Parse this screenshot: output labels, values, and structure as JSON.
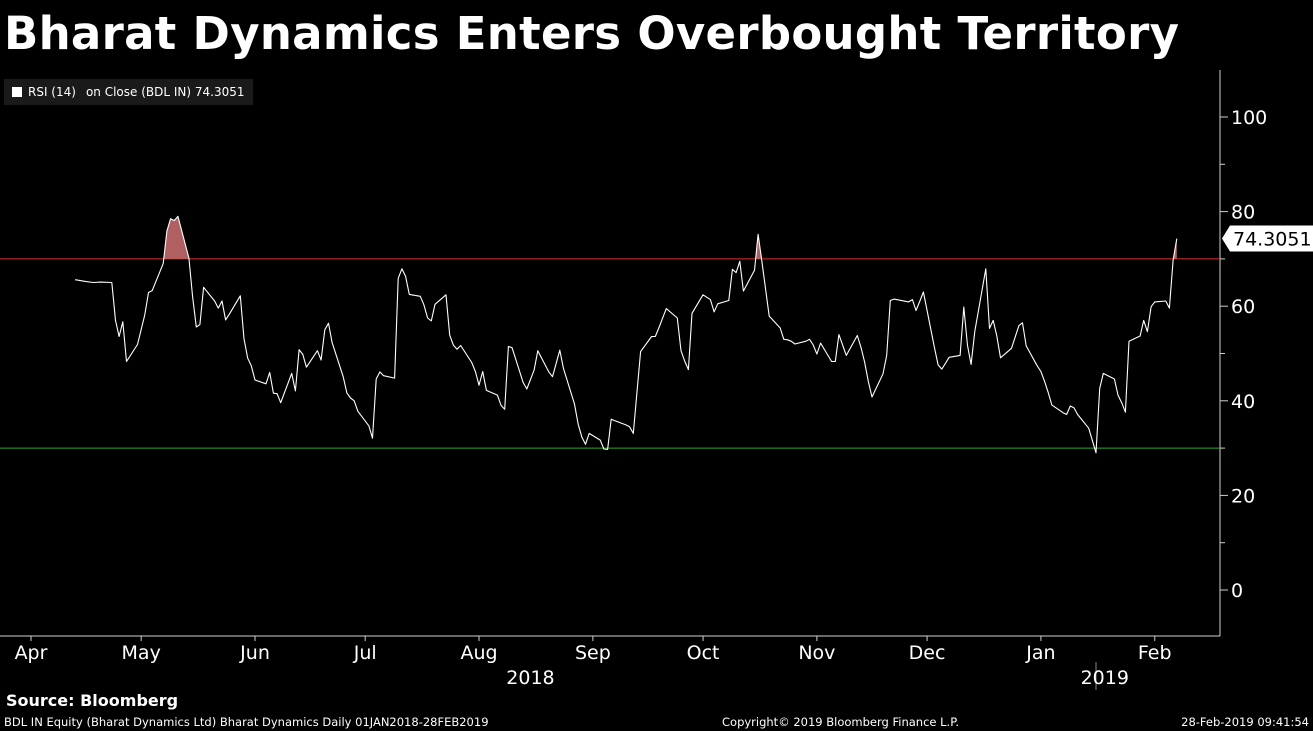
{
  "header": {
    "title": "Bharat Dynamics Enters Overbought Territory"
  },
  "legend": {
    "series_label": "RSI (14)",
    "detail": "on Close (BDL IN) 74.3051"
  },
  "footer": {
    "source": "Source: Bloomberg",
    "left": "BDL IN Equity (Bharat Dynamics Ltd) Bharat Dynamics  Daily 01JAN2018-28FEB2019",
    "middle": "Copyright© 2019 Bloomberg Finance L.P.",
    "right": "28-Feb-2019 09:41:54"
  },
  "colors": {
    "background": "#000000",
    "line": "#ffffff",
    "overbought_line": "#e03030",
    "oversold_line": "#2ea82e",
    "overbought_fill": "#b06060"
  },
  "chart_data": {
    "type": "line",
    "title": "Bharat Dynamics Enters Overbought Territory",
    "xlabel": "",
    "ylabel": "",
    "ylim": [
      -10,
      110
    ],
    "yticks": [
      0,
      20,
      40,
      60,
      80,
      100
    ],
    "x_range": [
      "2018-04-01",
      "2019-02-28"
    ],
    "month_ticks": [
      {
        "label": "Apr",
        "date": "2018-04-01"
      },
      {
        "label": "May",
        "date": "2018-05-01"
      },
      {
        "label": "Jun",
        "date": "2018-06-01"
      },
      {
        "label": "Jul",
        "date": "2018-07-01"
      },
      {
        "label": "Aug",
        "date": "2018-08-01"
      },
      {
        "label": "Sep",
        "date": "2018-09-01"
      },
      {
        "label": "Oct",
        "date": "2018-10-01"
      },
      {
        "label": "Nov",
        "date": "2018-11-01"
      },
      {
        "label": "Dec",
        "date": "2018-12-01"
      },
      {
        "label": "Jan",
        "date": "2019-01-01"
      },
      {
        "label": "Feb",
        "date": "2019-02-01"
      }
    ],
    "year_labels": [
      {
        "label": "2018",
        "date": "2018-08-15"
      },
      {
        "label": "2019",
        "date": "2019-02-01"
      }
    ],
    "year_divider": "2019-01-16",
    "overbought_level": 70,
    "oversold_level": 30,
    "last_value_label": "74.3051",
    "grid": false,
    "legend_position": "top-left",
    "series": [
      {
        "name": "RSI (14)",
        "points": [
          [
            "2018-04-13",
            65.6
          ],
          [
            "2018-04-16",
            65.2
          ],
          [
            "2018-04-18",
            65.0
          ],
          [
            "2018-04-20",
            65.1
          ],
          [
            "2018-04-23",
            65.0
          ],
          [
            "2018-04-24",
            57.0
          ],
          [
            "2018-04-25",
            53.6
          ],
          [
            "2018-04-26",
            56.7
          ],
          [
            "2018-04-27",
            48.3
          ],
          [
            "2018-04-30",
            51.9
          ],
          [
            "2018-05-02",
            58.2
          ],
          [
            "2018-05-03",
            62.9
          ],
          [
            "2018-05-04",
            63.3
          ],
          [
            "2018-05-07",
            69.0
          ],
          [
            "2018-05-08",
            75.9
          ],
          [
            "2018-05-09",
            78.5
          ],
          [
            "2018-05-10",
            78.1
          ],
          [
            "2018-05-11",
            79.0
          ],
          [
            "2018-05-14",
            70.2
          ],
          [
            "2018-05-15",
            62.0
          ],
          [
            "2018-05-16",
            55.6
          ],
          [
            "2018-05-17",
            56.1
          ],
          [
            "2018-05-18",
            64.0
          ],
          [
            "2018-05-21",
            61.1
          ],
          [
            "2018-05-22",
            59.6
          ],
          [
            "2018-05-23",
            61.1
          ],
          [
            "2018-05-24",
            57.1
          ],
          [
            "2018-05-25",
            58.3
          ],
          [
            "2018-05-28",
            62.2
          ],
          [
            "2018-05-29",
            53.1
          ],
          [
            "2018-05-30",
            49.0
          ],
          [
            "2018-05-31",
            47.4
          ],
          [
            "2018-06-01",
            44.4
          ],
          [
            "2018-06-04",
            43.6
          ],
          [
            "2018-06-05",
            46.0
          ],
          [
            "2018-06-06",
            41.6
          ],
          [
            "2018-06-07",
            41.5
          ],
          [
            "2018-06-08",
            39.6
          ],
          [
            "2018-06-11",
            45.8
          ],
          [
            "2018-06-12",
            42.1
          ],
          [
            "2018-06-13",
            50.8
          ],
          [
            "2018-06-14",
            49.8
          ],
          [
            "2018-06-15",
            47.1
          ],
          [
            "2018-06-18",
            50.6
          ],
          [
            "2018-06-19",
            48.6
          ],
          [
            "2018-06-20",
            55.0
          ],
          [
            "2018-06-21",
            56.4
          ],
          [
            "2018-06-22",
            52.3
          ],
          [
            "2018-06-25",
            45.1
          ],
          [
            "2018-06-26",
            41.7
          ],
          [
            "2018-06-27",
            40.6
          ],
          [
            "2018-06-28",
            40.0
          ],
          [
            "2018-06-29",
            37.8
          ],
          [
            "2018-07-02",
            34.7
          ],
          [
            "2018-07-03",
            32.1
          ],
          [
            "2018-07-04",
            44.6
          ],
          [
            "2018-07-05",
            46.1
          ],
          [
            "2018-07-06",
            45.3
          ],
          [
            "2018-07-09",
            44.8
          ],
          [
            "2018-07-10",
            65.9
          ],
          [
            "2018-07-11",
            67.9
          ],
          [
            "2018-07-12",
            66.3
          ],
          [
            "2018-07-13",
            62.5
          ],
          [
            "2018-07-16",
            62.1
          ],
          [
            "2018-07-17",
            60.3
          ],
          [
            "2018-07-18",
            57.5
          ],
          [
            "2018-07-19",
            56.9
          ],
          [
            "2018-07-20",
            60.4
          ],
          [
            "2018-07-23",
            62.4
          ],
          [
            "2018-07-24",
            53.9
          ],
          [
            "2018-07-25",
            51.8
          ],
          [
            "2018-07-26",
            50.9
          ],
          [
            "2018-07-27",
            51.7
          ],
          [
            "2018-07-30",
            48.1
          ],
          [
            "2018-07-31",
            46.2
          ],
          [
            "2018-08-01",
            43.3
          ],
          [
            "2018-08-02",
            46.2
          ],
          [
            "2018-08-03",
            42.2
          ],
          [
            "2018-08-06",
            41.2
          ],
          [
            "2018-08-07",
            39.0
          ],
          [
            "2018-08-08",
            38.2
          ],
          [
            "2018-08-09",
            51.5
          ],
          [
            "2018-08-10",
            51.2
          ],
          [
            "2018-08-13",
            43.9
          ],
          [
            "2018-08-14",
            42.5
          ],
          [
            "2018-08-16",
            46.5
          ],
          [
            "2018-08-17",
            50.6
          ],
          [
            "2018-08-20",
            46.1
          ],
          [
            "2018-08-21",
            45.1
          ],
          [
            "2018-08-23",
            50.7
          ],
          [
            "2018-08-24",
            46.8
          ],
          [
            "2018-08-27",
            39.3
          ],
          [
            "2018-08-28",
            35.0
          ],
          [
            "2018-08-29",
            32.3
          ],
          [
            "2018-08-30",
            30.8
          ],
          [
            "2018-08-31",
            33.1
          ],
          [
            "2018-09-03",
            31.7
          ],
          [
            "2018-09-04",
            29.8
          ],
          [
            "2018-09-05",
            29.7
          ],
          [
            "2018-09-06",
            36.1
          ],
          [
            "2018-09-07",
            35.8
          ],
          [
            "2018-09-10",
            34.9
          ],
          [
            "2018-09-11",
            34.5
          ],
          [
            "2018-09-12",
            33.1
          ],
          [
            "2018-09-14",
            50.4
          ],
          [
            "2018-09-17",
            53.6
          ],
          [
            "2018-09-18",
            53.6
          ],
          [
            "2018-09-19",
            55.5
          ],
          [
            "2018-09-21",
            59.5
          ],
          [
            "2018-09-24",
            57.5
          ],
          [
            "2018-09-25",
            50.6
          ],
          [
            "2018-09-26",
            48.4
          ],
          [
            "2018-09-27",
            46.6
          ],
          [
            "2018-09-28",
            58.5
          ],
          [
            "2018-10-01",
            62.4
          ],
          [
            "2018-10-03",
            61.4
          ],
          [
            "2018-10-04",
            58.8
          ],
          [
            "2018-10-05",
            60.5
          ],
          [
            "2018-10-08",
            61.2
          ],
          [
            "2018-10-09",
            67.8
          ],
          [
            "2018-10-10",
            67.1
          ],
          [
            "2018-10-11",
            69.5
          ],
          [
            "2018-10-12",
            63.2
          ],
          [
            "2018-10-15",
            67.6
          ],
          [
            "2018-10-16",
            75.2
          ],
          [
            "2018-10-17",
            69.6
          ],
          [
            "2018-10-19",
            57.9
          ],
          [
            "2018-10-22",
            55.4
          ],
          [
            "2018-10-23",
            53.0
          ],
          [
            "2018-10-24",
            52.9
          ],
          [
            "2018-10-25",
            52.6
          ],
          [
            "2018-10-26",
            52.0
          ],
          [
            "2018-10-29",
            52.6
          ],
          [
            "2018-10-30",
            53.0
          ],
          [
            "2018-10-31",
            51.8
          ],
          [
            "2018-11-01",
            49.9
          ],
          [
            "2018-11-02",
            52.2
          ],
          [
            "2018-11-05",
            48.3
          ],
          [
            "2018-11-06",
            48.3
          ],
          [
            "2018-11-07",
            54.0
          ],
          [
            "2018-11-09",
            49.6
          ],
          [
            "2018-11-12",
            53.8
          ],
          [
            "2018-11-13",
            51.3
          ],
          [
            "2018-11-14",
            48.2
          ],
          [
            "2018-11-15",
            44.1
          ],
          [
            "2018-11-16",
            40.8
          ],
          [
            "2018-11-19",
            45.7
          ],
          [
            "2018-11-20",
            49.6
          ],
          [
            "2018-11-21",
            61.2
          ],
          [
            "2018-11-22",
            61.5
          ],
          [
            "2018-11-26",
            60.9
          ],
          [
            "2018-11-27",
            61.4
          ],
          [
            "2018-11-28",
            59.1
          ],
          [
            "2018-11-29",
            61.0
          ],
          [
            "2018-11-30",
            63.0
          ],
          [
            "2018-12-03",
            51.3
          ],
          [
            "2018-12-04",
            47.6
          ],
          [
            "2018-12-05",
            46.7
          ],
          [
            "2018-12-06",
            47.9
          ],
          [
            "2018-12-07",
            49.2
          ],
          [
            "2018-12-10",
            49.6
          ],
          [
            "2018-12-11",
            59.8
          ],
          [
            "2018-12-12",
            51.7
          ],
          [
            "2018-12-13",
            47.7
          ],
          [
            "2018-12-14",
            54.7
          ],
          [
            "2018-12-17",
            67.9
          ],
          [
            "2018-12-18",
            55.3
          ],
          [
            "2018-12-19",
            57.0
          ],
          [
            "2018-12-20",
            53.7
          ],
          [
            "2018-12-21",
            49.1
          ],
          [
            "2018-12-24",
            51.1
          ],
          [
            "2018-12-26",
            55.9
          ],
          [
            "2018-12-27",
            56.5
          ],
          [
            "2018-12-28",
            51.6
          ],
          [
            "2018-12-31",
            47.4
          ],
          [
            "2019-01-01",
            46.2
          ],
          [
            "2019-01-02",
            44.1
          ],
          [
            "2019-01-03",
            41.7
          ],
          [
            "2019-01-04",
            39.1
          ],
          [
            "2019-01-07",
            37.5
          ],
          [
            "2019-01-08",
            37.1
          ],
          [
            "2019-01-09",
            38.9
          ],
          [
            "2019-01-10",
            38.5
          ],
          [
            "2019-01-11",
            37.1
          ],
          [
            "2019-01-14",
            34.2
          ],
          [
            "2019-01-16",
            29.0
          ],
          [
            "2019-01-17",
            42.6
          ],
          [
            "2019-01-18",
            45.8
          ],
          [
            "2019-01-21",
            44.6
          ],
          [
            "2019-01-22",
            41.2
          ],
          [
            "2019-01-23",
            39.6
          ],
          [
            "2019-01-24",
            37.6
          ],
          [
            "2019-01-25",
            52.6
          ],
          [
            "2019-01-28",
            53.7
          ],
          [
            "2019-01-29",
            57.0
          ],
          [
            "2019-01-30",
            54.6
          ],
          [
            "2019-01-31",
            59.9
          ],
          [
            "2019-02-01",
            60.9
          ],
          [
            "2019-02-04",
            61.1
          ],
          [
            "2019-02-05",
            59.6
          ],
          [
            "2019-02-06",
            69.7
          ],
          [
            "2019-02-07",
            74.3
          ]
        ]
      }
    ]
  }
}
